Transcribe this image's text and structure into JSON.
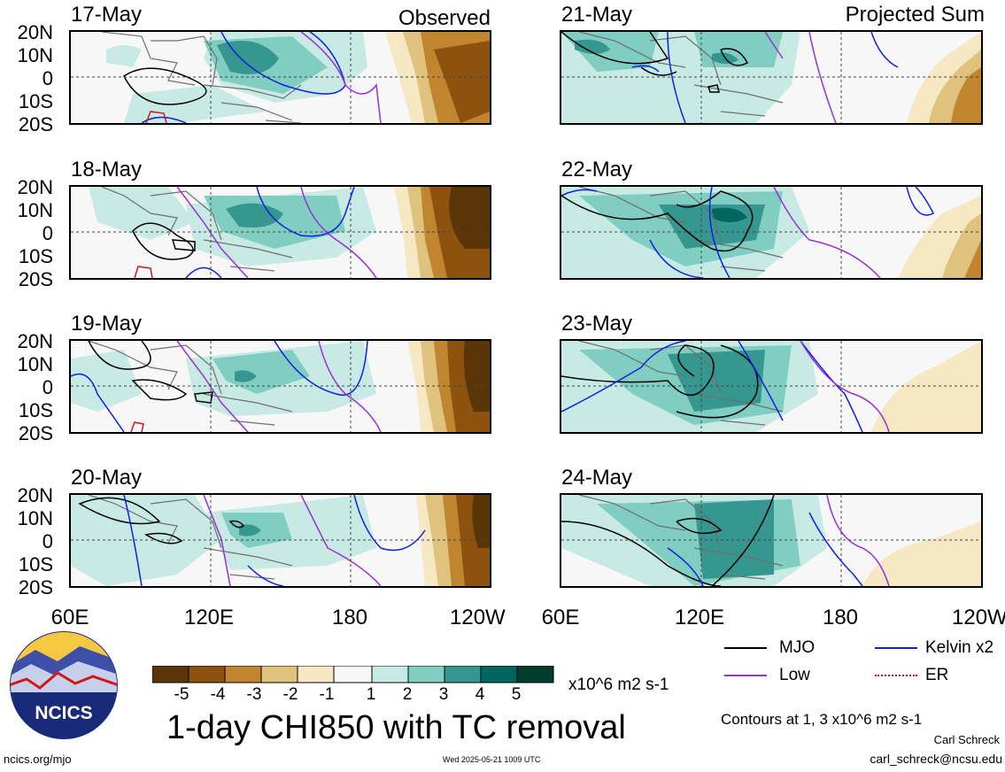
{
  "colors": {
    "mjo": "#000000",
    "kelvin": "#1020e0",
    "low": "#9a30d8",
    "er": "#d01818",
    "land": "#707070",
    "suppressed": [
      "#5a3606",
      "#8c520e",
      "#c18530",
      "#dfc27d",
      "#f6e8c3",
      "#f7f7f7"
    ],
    "enhanced": [
      "#f7f7f7",
      "#c7eae5",
      "#80cdc1",
      "#35978f",
      "#01665e",
      "#003c30"
    ]
  },
  "panels": {
    "observed_tag": "Observed",
    "projected_tag": "Projected Sum",
    "left": [
      {
        "date": "17-May"
      },
      {
        "date": "18-May"
      },
      {
        "date": "19-May"
      },
      {
        "date": "20-May"
      }
    ],
    "right": [
      {
        "date": "21-May"
      },
      {
        "date": "22-May"
      },
      {
        "date": "23-May"
      },
      {
        "date": "24-May"
      }
    ]
  },
  "axes": {
    "lat_labels": [
      "20N",
      "10N",
      "0",
      "10S",
      "20S"
    ],
    "lon_labels": [
      "60E",
      "120E",
      "180",
      "120W"
    ]
  },
  "colorbar": {
    "tick_labels": [
      "-5",
      "-4",
      "-3",
      "-2",
      "-1",
      "1",
      "2",
      "3",
      "4",
      "5"
    ],
    "units": "x10^6 m2 s-1"
  },
  "title": "1-day CHI850 with TC removal",
  "legend": {
    "mjo": "MJO",
    "kelvin": "Kelvin x2",
    "low": "Low",
    "er": "ER",
    "contours_note": "Contours at 1, 3 x10^6 m2 s-1"
  },
  "footer": {
    "url": "ncics.org/mjo",
    "timestamp": "Wed 2025-05-21 1009 UTC",
    "author": "Carl Schreck",
    "email": "carl_schreck@ncsu.edu",
    "logo_text": "NCICS"
  }
}
